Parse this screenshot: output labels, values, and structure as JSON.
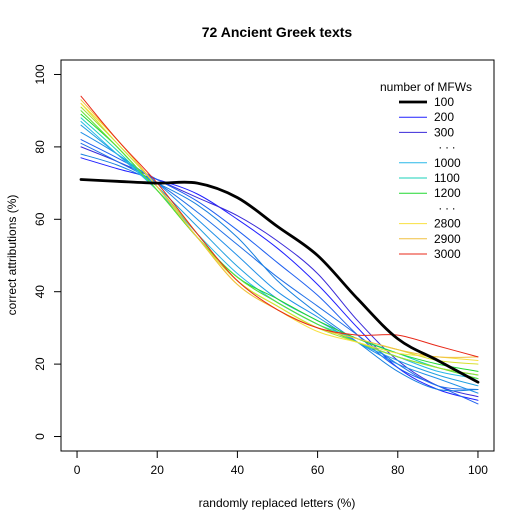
{
  "chart_data": {
    "type": "line",
    "title": "72 Ancient Greek texts",
    "xlabel": "randomly replaced letters (%)",
    "ylabel": "correct attributions (%)",
    "xlim": [
      -4,
      104
    ],
    "ylim": [
      -4,
      104
    ],
    "xticks": [
      0,
      20,
      40,
      60,
      80,
      100
    ],
    "yticks": [
      0,
      20,
      40,
      60,
      80,
      100
    ],
    "grid": false,
    "legend": {
      "title": "number of MFWs",
      "placement": "top-right",
      "entries": [
        {
          "label": "100",
          "color": "#000000",
          "width": 2.8
        },
        {
          "label": "200",
          "color": "#2020ff",
          "width": 1
        },
        {
          "label": "300",
          "color": "#3a2ad8",
          "width": 1
        },
        {
          "label": ". . .",
          "color": null
        },
        {
          "label": "1000",
          "color": "#28b8e8",
          "width": 1
        },
        {
          "label": "1100",
          "color": "#18d0b8",
          "width": 1
        },
        {
          "label": "1200",
          "color": "#20d830",
          "width": 1
        },
        {
          "label": ". . .",
          "color": null
        },
        {
          "label": "2800",
          "color": "#f8e040",
          "width": 1
        },
        {
          "label": "2900",
          "color": "#f0c040",
          "width": 1
        },
        {
          "label": "3000",
          "color": "#e82818",
          "width": 1
        }
      ]
    },
    "x": [
      1,
      10,
      20,
      30,
      40,
      50,
      60,
      70,
      80,
      90,
      100
    ],
    "series": [
      {
        "name": "100",
        "color": "#000000",
        "width": 2.8,
        "values": [
          71,
          70.5,
          70,
          70,
          66,
          58,
          50,
          38,
          27,
          21,
          15
        ]
      },
      {
        "name": "200",
        "color": "#2020ff",
        "width": 1,
        "values": [
          77,
          74,
          71,
          67,
          60,
          52,
          42,
          30,
          19,
          13,
          10
        ]
      },
      {
        "name": "300",
        "color": "#3a2ad8",
        "width": 1,
        "values": [
          80,
          76,
          71,
          66,
          61,
          54,
          45,
          32,
          21,
          14,
          11
        ]
      },
      {
        "color": "#2060f0",
        "width": 1,
        "values": [
          82,
          77,
          71,
          65,
          57,
          48,
          39,
          28,
          19,
          14,
          9
        ]
      },
      {
        "color": "#2070e8",
        "width": 1,
        "values": [
          81,
          76,
          70,
          62,
          53,
          44,
          36,
          28,
          20,
          14,
          13
        ]
      },
      {
        "color": "#1880e0",
        "width": 1,
        "values": [
          78,
          75,
          70,
          64,
          55,
          43,
          34,
          26,
          18,
          13,
          13
        ]
      },
      {
        "color": "#2090e8",
        "width": 1,
        "values": [
          84,
          78,
          70,
          60,
          50,
          40,
          33,
          26,
          20,
          16,
          12
        ]
      },
      {
        "color": "#20a0e0",
        "width": 1,
        "values": [
          86,
          78,
          69,
          58,
          47,
          38,
          32,
          26,
          21,
          17,
          14
        ]
      },
      {
        "name": "1000",
        "color": "#28b8e8",
        "width": 1,
        "values": [
          87,
          78,
          68,
          56,
          45,
          37,
          31,
          26,
          22,
          18,
          16
        ]
      },
      {
        "name": "1100",
        "color": "#18d0b8",
        "width": 1,
        "values": [
          88,
          79,
          68,
          55,
          44,
          37,
          31,
          27,
          23,
          19,
          17
        ]
      },
      {
        "name": "1200",
        "color": "#20d830",
        "width": 1,
        "values": [
          89,
          80,
          68,
          55,
          44,
          38,
          32,
          27,
          23,
          20,
          18
        ]
      },
      {
        "color": "#60e030",
        "width": 1,
        "values": [
          90,
          80,
          68,
          55,
          44,
          37,
          31,
          26,
          22,
          19,
          16
        ]
      },
      {
        "color": "#a0e030",
        "width": 1,
        "values": [
          91,
          81,
          69,
          56,
          43,
          36,
          30,
          26,
          22,
          19,
          17
        ]
      },
      {
        "color": "#d8e030",
        "width": 1,
        "values": [
          92,
          81,
          69,
          55,
          43,
          36,
          30,
          27,
          24,
          21,
          20
        ]
      },
      {
        "name": "2800",
        "color": "#f8e040",
        "width": 1,
        "values": [
          92,
          82,
          69,
          55,
          42,
          35,
          29,
          26,
          23,
          22,
          21
        ]
      },
      {
        "name": "2900",
        "color": "#f0c040",
        "width": 1,
        "values": [
          93,
          82,
          69,
          55,
          42,
          35,
          30,
          27,
          24,
          22,
          22
        ]
      },
      {
        "name": "3000",
        "color": "#e82818",
        "width": 1,
        "values": [
          94,
          82,
          70,
          56,
          43,
          35,
          30,
          28,
          28,
          25,
          22
        ]
      }
    ]
  }
}
